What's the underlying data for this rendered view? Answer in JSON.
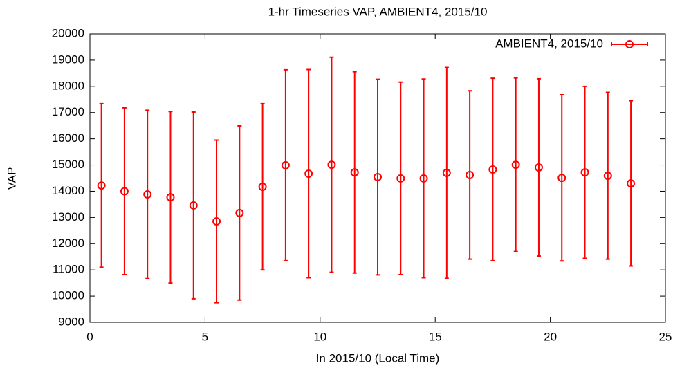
{
  "chart_data": {
    "type": "errorbar",
    "title": "1-hr Timeseries VAP, AMBIENT4, 2015/10",
    "x_label": "In 2015/10 (Local Time)",
    "y_label": "VAP",
    "x": [
      0.5,
      1.5,
      2.5,
      3.5,
      4.5,
      5.5,
      6.5,
      7.5,
      8.5,
      9.5,
      10.5,
      11.5,
      12.5,
      13.5,
      14.5,
      15.5,
      16.5,
      17.5,
      18.5,
      19.5,
      20.5,
      21.5,
      22.5,
      23.5
    ],
    "series": [
      {
        "name": "AMBIENT4, 2015/10",
        "color": "#ff0000",
        "values": [
          14220,
          14000,
          13880,
          13770,
          13460,
          12850,
          13170,
          14170,
          14990,
          14670,
          15010,
          14720,
          14540,
          14490,
          14490,
          14700,
          14620,
          14830,
          15010,
          14910,
          14510,
          14720,
          14590,
          14300
        ],
        "errors": [
          3120,
          3180,
          3210,
          3270,
          3560,
          3100,
          3320,
          3170,
          3640,
          3970,
          4100,
          3840,
          3730,
          3670,
          3790,
          4020,
          3210,
          3480,
          3310,
          3380,
          3170,
          3280,
          3180,
          3150
        ]
      }
    ],
    "xlim": [
      0,
      25
    ],
    "xticks": [
      0,
      5,
      10,
      15,
      20,
      25
    ],
    "ylim": [
      9000,
      20000
    ],
    "yticks": [
      9000,
      10000,
      11000,
      12000,
      13000,
      14000,
      15000,
      16000,
      17000,
      18000,
      19000,
      20000
    ],
    "legend": "top-right"
  }
}
